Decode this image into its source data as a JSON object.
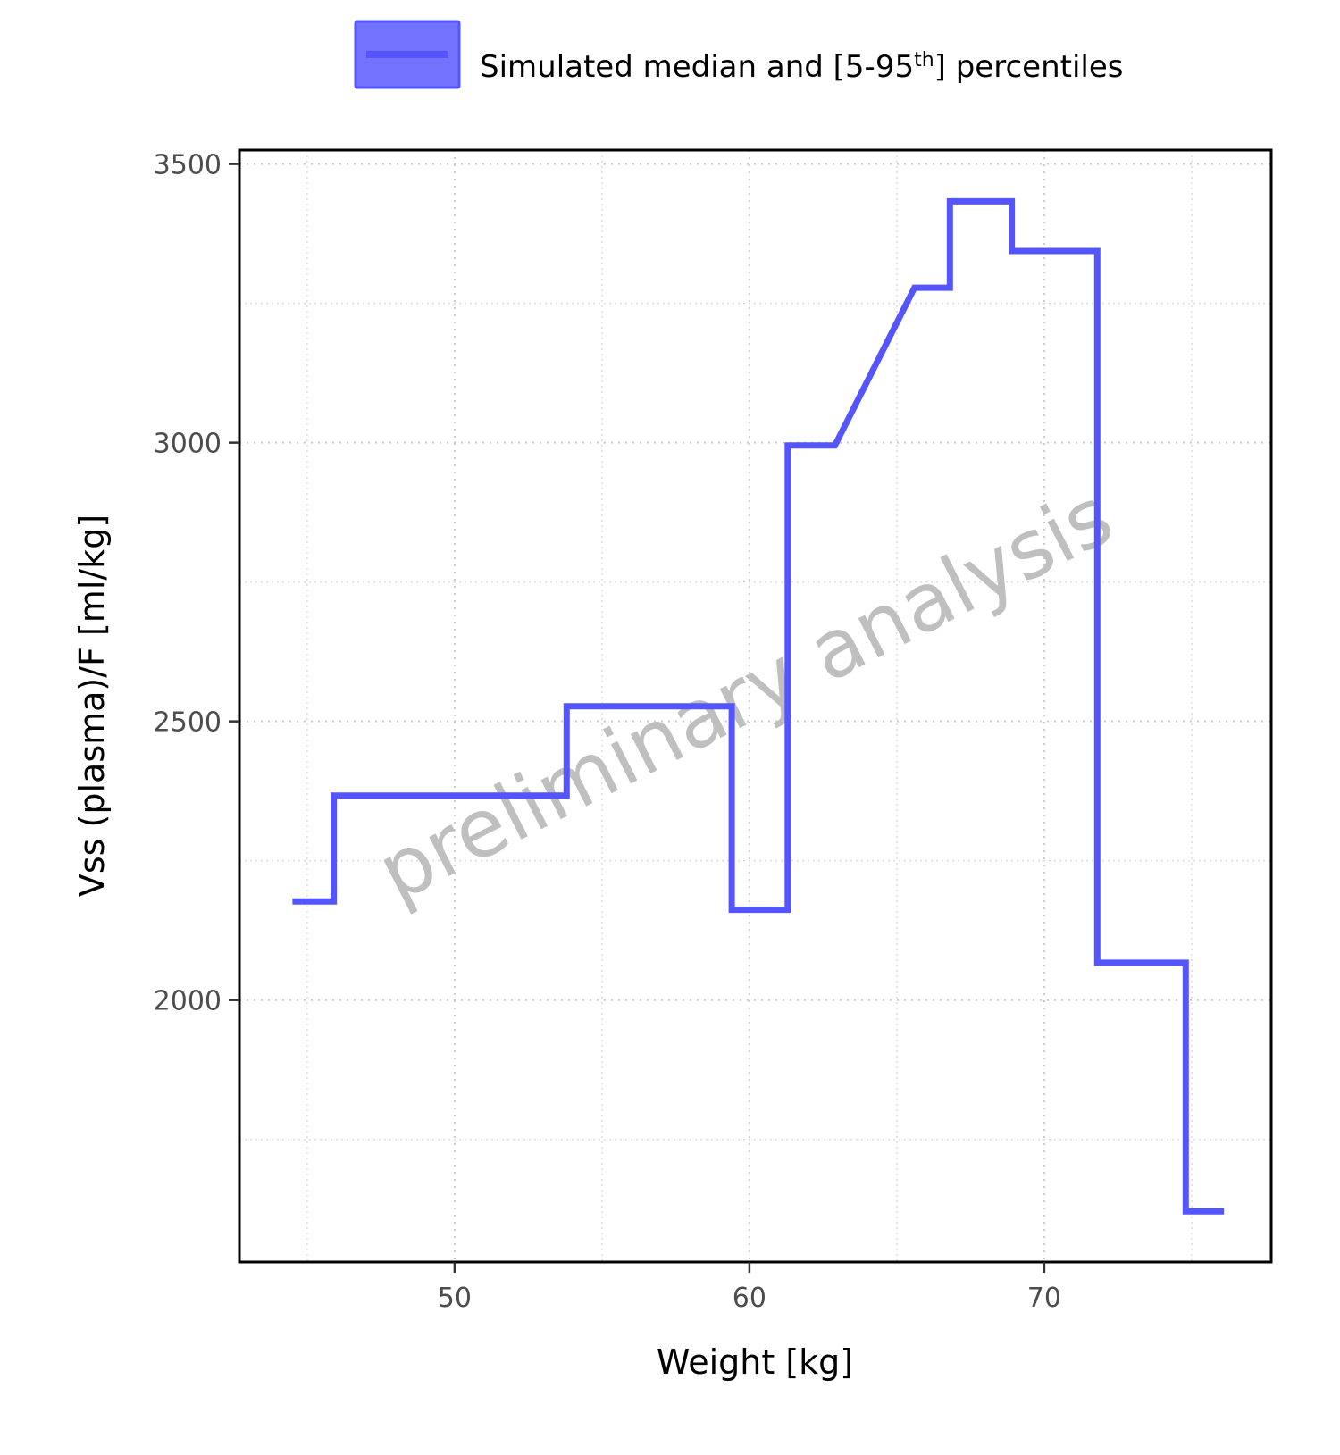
{
  "legend": {
    "label_main": "Simulated median and [5-95",
    "label_sup": "th",
    "label_end": "] percentiles",
    "swatch_fill": "#7373ff",
    "swatch_border": "#5555ff"
  },
  "watermark": "preliminary analysis",
  "chart_data": {
    "type": "line",
    "title": "",
    "xlabel": "Weight [kg]",
    "ylabel": "Vss (plasma)/F [ml/kg]",
    "xlim": [
      42.7,
      77.7
    ],
    "ylim": [
      1530,
      3525
    ],
    "x_ticks": [
      50,
      60,
      70
    ],
    "x_tick_labels": [
      "50",
      "60",
      "70"
    ],
    "x_minor_ticks": [
      45,
      55,
      65,
      75
    ],
    "y_ticks": [
      2000,
      2500,
      3000,
      3500
    ],
    "y_tick_labels": [
      "2000",
      "2500",
      "3000",
      "3500"
    ],
    "y_minor_ticks": [
      1750,
      2250,
      2750,
      3250
    ],
    "grid": true,
    "legend_position": "top",
    "line_color": "#5555ff",
    "series": [
      {
        "name": "Simulated median and [5-95th] percentiles",
        "x": [
          44.5,
          45.9,
          45.9,
          53.8,
          53.8,
          59.4,
          59.4,
          61.3,
          61.3,
          62.9,
          65.6,
          66.8,
          66.8,
          68.9,
          68.9,
          71.8,
          71.8,
          74.8,
          74.8,
          76.1
        ],
        "y": [
          2177,
          2177,
          2367,
          2367,
          2527,
          2527,
          2162,
          2162,
          2995,
          2995,
          3278,
          3278,
          3433,
          3433,
          3344,
          3344,
          2067,
          2067,
          1621,
          1621
        ]
      }
    ]
  }
}
